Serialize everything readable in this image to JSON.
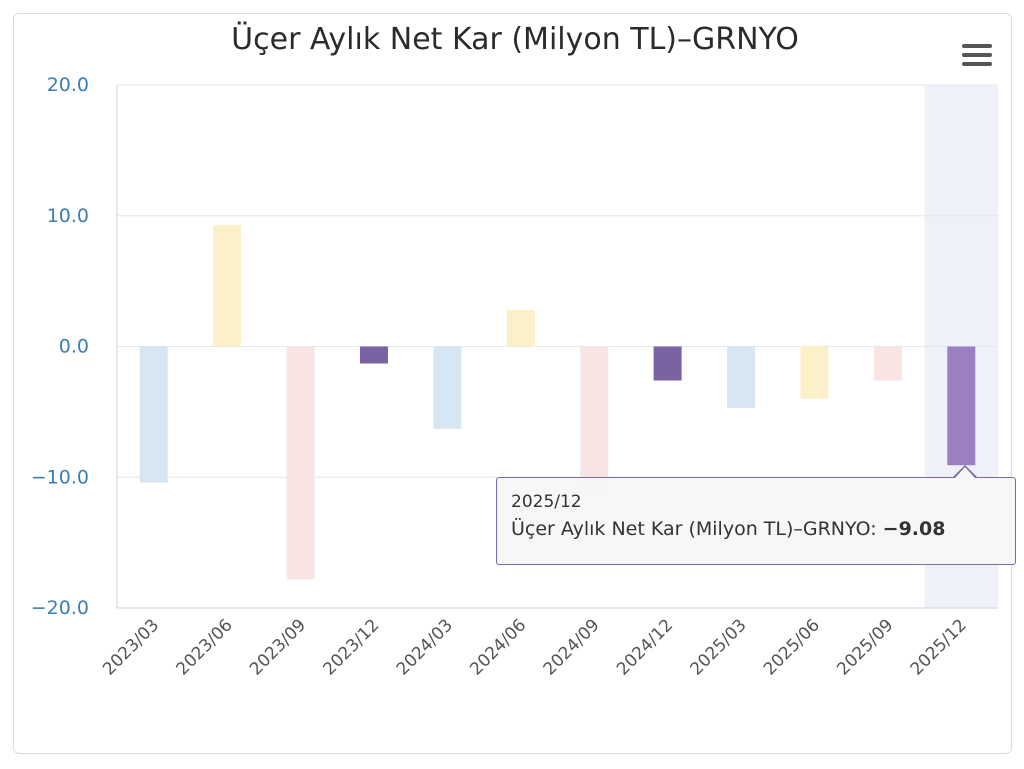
{
  "chart_data": {
    "type": "bar",
    "title": "Üçer Aylık Net Kar (Milyon TL)–GRNYO",
    "xlabel": "",
    "ylabel": "",
    "ylim": [
      -20,
      20
    ],
    "yticks": [
      "20.0",
      "10.0",
      "0.0",
      "−10.0",
      "−20.0"
    ],
    "categories": [
      "2023/03",
      "2023/06",
      "2023/09",
      "2023/12",
      "2024/03",
      "2024/06",
      "2024/09",
      "2024/12",
      "2025/03",
      "2025/06",
      "2025/09",
      "2025/12"
    ],
    "series": [
      {
        "name": "Üçer Aylık Net Kar (Milyon TL)–GRNYO",
        "values": [
          -10.4,
          9.3,
          -17.8,
          -1.3,
          -6.3,
          2.8,
          -11.0,
          -2.6,
          -4.7,
          -4.0,
          -2.6,
          -9.08
        ]
      }
    ],
    "bar_colors": [
      "#d6e6f2",
      "#fbf0c8",
      "#f7e4e3",
      "#7b62a3",
      "#d6e6f2",
      "#fbf0c8",
      "#f7e4e3",
      "#7b62a3",
      "#d6e6f2",
      "#fbf0c8",
      "#f7e4e3",
      "#9a80c0"
    ],
    "highlight_index": 11,
    "highlight_color": "#eef2f8",
    "grid": true,
    "legend": "none"
  },
  "tooltip": {
    "x_label": "2025/12",
    "series_label": "Üçer Aylık Net Kar (Milyon TL)–GRNYO:",
    "value": "−9.08",
    "border_color": "#7f68a8"
  },
  "menu": {
    "icon": "hamburger-menu-icon"
  },
  "colors": {
    "tick_y": "#3c7fb4",
    "tick_x": "#555555",
    "grid": "#e4e7ec",
    "axis": "#c9d3e3"
  }
}
